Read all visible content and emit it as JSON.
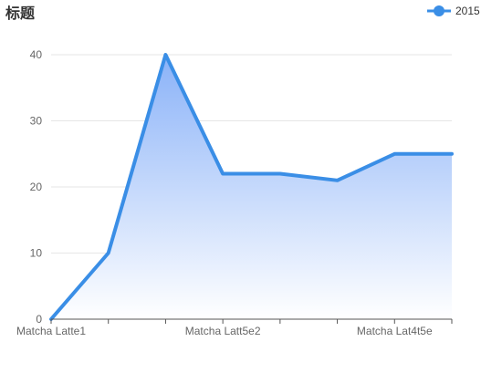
{
  "chart_data": {
    "type": "area",
    "title": "标题",
    "xlabel": "",
    "ylabel": "",
    "categories": [
      "Matcha Latte1",
      "",
      "",
      "Matcha Latt5e2",
      "",
      "",
      "Matcha Lat4t5e",
      ""
    ],
    "series": [
      {
        "name": "2015",
        "values": [
          0,
          10,
          40,
          22,
          22,
          21,
          25,
          25
        ]
      }
    ],
    "ylim": [
      0,
      40
    ],
    "yticks": [
      0,
      10,
      20,
      30,
      40
    ],
    "grid": true,
    "legend": "top-right",
    "colors": {
      "line": "#3a8ee6",
      "area_top": "#8ab2f8",
      "area_bottom": "#ffffff",
      "grid": "#e6e6e6",
      "axis": "#555555"
    }
  }
}
